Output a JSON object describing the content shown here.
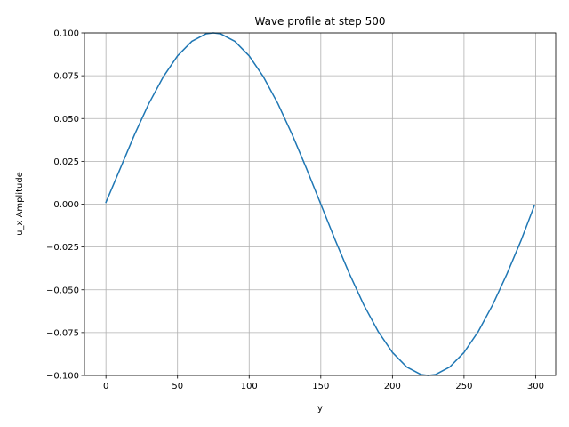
{
  "chart_data": {
    "type": "line",
    "title": "Wave profile at step 500",
    "xlabel": "y",
    "ylabel": "u_x Amplitude",
    "xlim": [
      -15,
      314
    ],
    "ylim": [
      -0.1,
      0.1
    ],
    "xticks": [
      0,
      50,
      100,
      150,
      200,
      250,
      300
    ],
    "xtick_labels": [
      "0",
      "50",
      "100",
      "150",
      "200",
      "250",
      "300"
    ],
    "yticks": [
      -0.1,
      -0.075,
      -0.05,
      -0.025,
      0.0,
      0.025,
      0.05,
      0.075,
      0.1
    ],
    "ytick_labels": [
      "−0.100",
      "−0.075",
      "−0.050",
      "−0.025",
      "0.000",
      "0.025",
      "0.050",
      "0.075",
      "0.100"
    ],
    "grid": true,
    "series": [
      {
        "color": "#1f77b4",
        "x": [
          0,
          10,
          20,
          30,
          40,
          50,
          60,
          70,
          75,
          80,
          90,
          100,
          110,
          120,
          130,
          140,
          150,
          160,
          170,
          180,
          190,
          200,
          210,
          220,
          225,
          230,
          240,
          250,
          260,
          270,
          280,
          290,
          299
        ],
        "values": [
          0.001,
          0.0208,
          0.0407,
          0.0588,
          0.0743,
          0.0866,
          0.0951,
          0.0995,
          0.1,
          0.0995,
          0.0951,
          0.0866,
          0.0743,
          0.0588,
          0.0407,
          0.0208,
          0.0,
          -0.0208,
          -0.0407,
          -0.0588,
          -0.0743,
          -0.0866,
          -0.0951,
          -0.0995,
          -0.1,
          -0.0995,
          -0.0951,
          -0.0866,
          -0.0743,
          -0.0588,
          -0.0407,
          -0.0208,
          -0.001
        ]
      }
    ]
  }
}
